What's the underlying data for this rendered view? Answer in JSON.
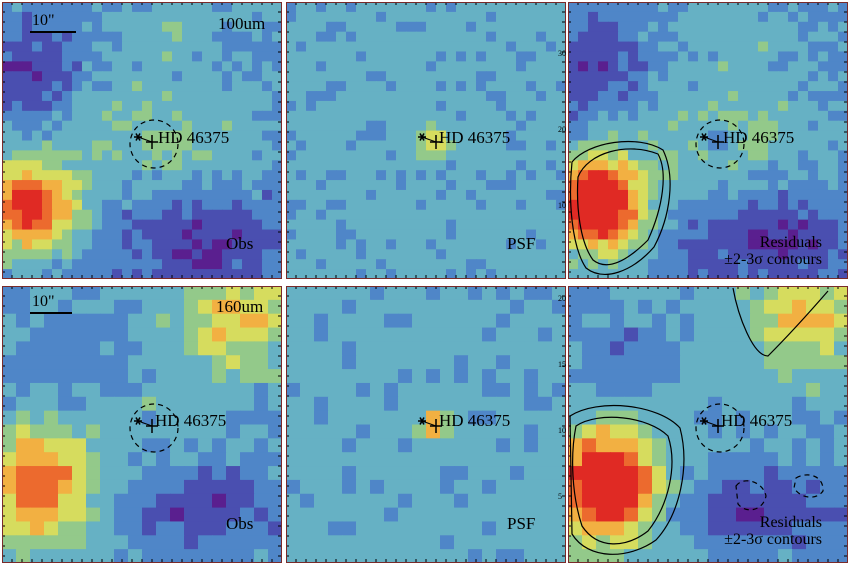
{
  "rows": [
    {
      "band": "100um",
      "scale_label": "10\"",
      "panels": [
        {
          "id": "obs",
          "label": "Obs",
          "target": "HD 46375",
          "ticks": []
        },
        {
          "id": "psf",
          "label": "PSF",
          "target": "HD 46375",
          "ticks": [
            "30",
            "20",
            "10"
          ]
        },
        {
          "id": "res",
          "label_line1": "Residuals",
          "label_line2": "±2-3σ contours",
          "target": "HD 46375",
          "ticks": []
        }
      ]
    },
    {
      "band": "160um",
      "scale_label": "10\"",
      "panels": [
        {
          "id": "obs",
          "label": "Obs",
          "target": "HD 46375",
          "ticks": []
        },
        {
          "id": "psf",
          "label": "PSF",
          "target": "HD 46375",
          "ticks": [
            "20",
            "15",
            "10",
            "5"
          ]
        },
        {
          "id": "res",
          "label_line1": "Residuals",
          "label_line2": "±2-3σ contours",
          "target": "HD 46375",
          "ticks": []
        }
      ]
    }
  ],
  "colors": {
    "psf_background": "#4f8fcc",
    "frame": "#7a2a2a",
    "colormap": [
      "#5a1f8f",
      "#4a4fb0",
      "#4f86c8",
      "#66b1c4",
      "#93c98a",
      "#d6dc5e",
      "#f2b042",
      "#ec6a2e",
      "#e02a24"
    ]
  }
}
